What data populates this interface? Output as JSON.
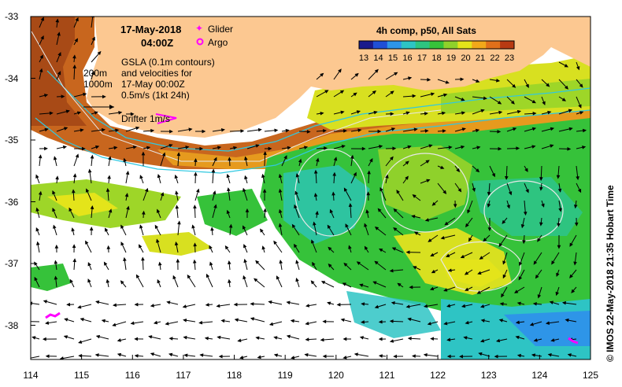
{
  "header": {
    "date": "17-May-2018",
    "time": "04:00Z"
  },
  "legend": {
    "glider": "Glider",
    "argo": "Argo",
    "glider_color": "#ff00ff",
    "argo_color": "#ff00ff"
  },
  "notes": {
    "line1": "GSLA (0.1m contours)",
    "line2": "and velocities for",
    "line3": "17-May 00:00Z",
    "line4": "0.5m/s (1kt 24h)",
    "drifter": "Drifter 1m/s",
    "iso200": "200m",
    "iso1000": "1000m"
  },
  "colorbar": {
    "title": "4h comp, p50, All Sats",
    "ticks": [
      "13",
      "14",
      "15",
      "16",
      "17",
      "18",
      "19",
      "20",
      "21",
      "22",
      "23"
    ],
    "colors": [
      "#1a1a8c",
      "#1f4fd6",
      "#2e95e8",
      "#2ec4c4",
      "#2ec480",
      "#36c23a",
      "#8fd12b",
      "#e4e41a",
      "#f2a81a",
      "#e0701a",
      "#b83a12"
    ]
  },
  "axes": {
    "x_ticks": [
      "114",
      "115",
      "116",
      "117",
      "118",
      "119",
      "120",
      "121",
      "122",
      "123",
      "124",
      "125"
    ],
    "y_ticks": [
      "-33",
      "-34",
      "-35",
      "-36",
      "-37",
      "-38"
    ]
  },
  "colors": {
    "land": "#fcc891",
    "isobath": "#30c8e0",
    "gsla_contour": "#e8e8e8"
  },
  "credit": "© IMOS 22-May-2018 21:35 Hobart Time"
}
